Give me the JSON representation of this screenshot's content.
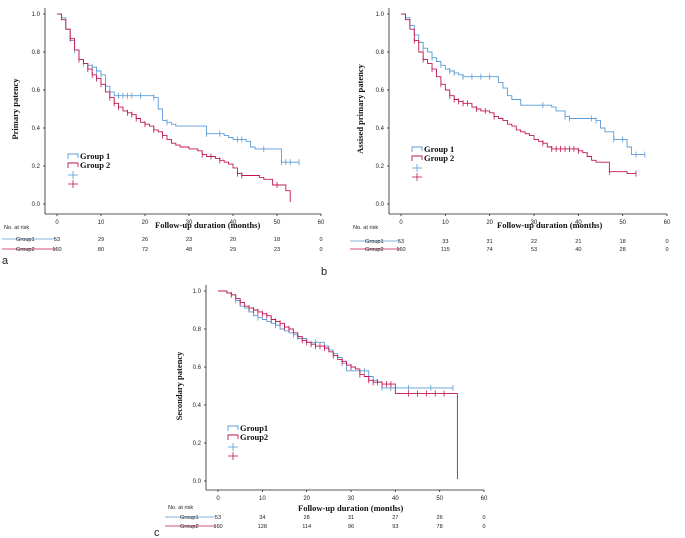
{
  "colors": {
    "group1": "#5b9bd5",
    "group2": "#c0174f",
    "axis": "#222222"
  },
  "risk_header": "No. at risk",
  "chart_data": [
    {
      "panel": "a",
      "type": "line",
      "step": true,
      "ylabel": "Primary patency",
      "xlabel": "Follow-up  duration (months)",
      "xlim": [
        0,
        60
      ],
      "ylim": [
        0,
        1.0
      ],
      "xticks": [
        "0",
        "10",
        "20",
        "30",
        "40",
        "50",
        "60"
      ],
      "yticks": [
        "0.0",
        "0.2",
        "0.4",
        "0.6",
        "0.8",
        "1.0"
      ],
      "legend": [
        "Group 1",
        "Group 2"
      ],
      "legend_position": "lower-left",
      "series": [
        {
          "name": "Group 1",
          "x": [
            0,
            1,
            2,
            3,
            4,
            5,
            6,
            7,
            8,
            9,
            10,
            11,
            12,
            13,
            14,
            15,
            16,
            17,
            18,
            19,
            20,
            21,
            22,
            23,
            24,
            25,
            26,
            27,
            28,
            29,
            30,
            31,
            32,
            33,
            34,
            35,
            36,
            37,
            38,
            39,
            40,
            41,
            42,
            43,
            44,
            45,
            46,
            47,
            48,
            49,
            50,
            51,
            52,
            53,
            54,
            55
          ],
          "y": [
            1.0,
            0.98,
            0.92,
            0.86,
            0.81,
            0.76,
            0.74,
            0.73,
            0.72,
            0.7,
            0.68,
            0.62,
            0.59,
            0.57,
            0.57,
            0.57,
            0.57,
            0.57,
            0.57,
            0.57,
            0.57,
            0.57,
            0.56,
            0.5,
            0.44,
            0.43,
            0.42,
            0.41,
            0.41,
            0.41,
            0.41,
            0.41,
            0.41,
            0.41,
            0.37,
            0.37,
            0.37,
            0.37,
            0.36,
            0.35,
            0.34,
            0.34,
            0.34,
            0.33,
            0.3,
            0.29,
            0.29,
            0.29,
            0.29,
            0.29,
            0.29,
            0.22,
            0.22,
            0.22,
            0.22,
            0.22
          ],
          "censored_x": [
            4,
            6,
            8,
            9,
            10,
            12,
            14,
            15,
            16,
            17,
            19,
            22,
            25,
            34,
            37,
            41,
            42,
            47,
            51,
            52,
            53,
            55
          ]
        },
        {
          "name": "Group 2",
          "x": [
            0,
            1,
            2,
            3,
            4,
            5,
            6,
            7,
            8,
            9,
            10,
            11,
            12,
            13,
            14,
            15,
            16,
            17,
            18,
            19,
            20,
            21,
            22,
            23,
            24,
            25,
            26,
            27,
            28,
            29,
            30,
            31,
            32,
            33,
            34,
            35,
            36,
            37,
            38,
            39,
            40,
            41,
            42,
            43,
            44,
            45,
            46,
            47,
            48,
            49,
            50,
            51,
            52,
            53
          ],
          "y": [
            1.0,
            0.97,
            0.92,
            0.87,
            0.81,
            0.76,
            0.74,
            0.71,
            0.68,
            0.66,
            0.63,
            0.59,
            0.56,
            0.53,
            0.51,
            0.49,
            0.48,
            0.47,
            0.45,
            0.43,
            0.42,
            0.41,
            0.39,
            0.38,
            0.36,
            0.34,
            0.32,
            0.31,
            0.3,
            0.3,
            0.29,
            0.29,
            0.28,
            0.26,
            0.25,
            0.25,
            0.24,
            0.23,
            0.22,
            0.21,
            0.19,
            0.16,
            0.15,
            0.15,
            0.15,
            0.15,
            0.14,
            0.13,
            0.13,
            0.1,
            0.1,
            0.1,
            0.07,
            0.01
          ],
          "censored_x": [
            3,
            5,
            7,
            8,
            9,
            10,
            12,
            13,
            14,
            16,
            17,
            18,
            20,
            22,
            24,
            33,
            35,
            37,
            41,
            42,
            50
          ]
        }
      ],
      "risk_table": {
        "times": [
          "0",
          "10",
          "20",
          "30",
          "40",
          "50",
          "60"
        ],
        "rows": [
          {
            "label": "Group1",
            "values": [
              "53",
              "29",
              "26",
              "23",
              "20",
              "18",
              "0"
            ]
          },
          {
            "label": "Group2",
            "values": [
              "160",
              "80",
              "72",
              "48",
              "29",
              "23",
              "0"
            ]
          }
        ]
      }
    },
    {
      "panel": "b",
      "type": "line",
      "step": true,
      "ylabel": "Assised primary patency",
      "xlabel": "Follow-up  duration (months)",
      "xlim": [
        0,
        60
      ],
      "ylim": [
        0,
        1.0
      ],
      "xticks": [
        "0",
        "10",
        "20",
        "30",
        "40",
        "50",
        "60"
      ],
      "yticks": [
        "0.0",
        "0.2",
        "0.4",
        "0.6",
        "0.8",
        "1.0"
      ],
      "legend": [
        "Group 1",
        "Group 2"
      ],
      "legend_position": "lower-left",
      "series": [
        {
          "name": "Group 1",
          "x": [
            0,
            1,
            2,
            3,
            4,
            5,
            6,
            7,
            8,
            9,
            10,
            11,
            12,
            13,
            14,
            15,
            16,
            17,
            18,
            19,
            20,
            21,
            22,
            23,
            24,
            25,
            26,
            27,
            28,
            29,
            30,
            31,
            32,
            33,
            34,
            35,
            36,
            37,
            38,
            39,
            40,
            41,
            42,
            43,
            44,
            45,
            46,
            47,
            48,
            49,
            50,
            51,
            52,
            53,
            54,
            55
          ],
          "y": [
            1.0,
            0.98,
            0.94,
            0.89,
            0.85,
            0.82,
            0.8,
            0.77,
            0.75,
            0.73,
            0.71,
            0.7,
            0.69,
            0.68,
            0.67,
            0.67,
            0.67,
            0.67,
            0.67,
            0.67,
            0.67,
            0.67,
            0.64,
            0.61,
            0.57,
            0.55,
            0.55,
            0.52,
            0.52,
            0.52,
            0.52,
            0.52,
            0.52,
            0.52,
            0.51,
            0.49,
            0.49,
            0.46,
            0.45,
            0.45,
            0.45,
            0.45,
            0.45,
            0.45,
            0.44,
            0.4,
            0.38,
            0.38,
            0.34,
            0.34,
            0.34,
            0.3,
            0.26,
            0.26,
            0.26,
            0.26
          ],
          "censored_x": [
            5,
            7,
            9,
            11,
            12,
            14,
            16,
            18,
            20,
            32,
            37,
            38,
            43,
            44,
            48,
            50,
            53,
            55
          ]
        },
        {
          "name": "Group 2",
          "x": [
            0,
            1,
            2,
            3,
            4,
            5,
            6,
            7,
            8,
            9,
            10,
            11,
            12,
            13,
            14,
            15,
            16,
            17,
            18,
            19,
            20,
            21,
            22,
            23,
            24,
            25,
            26,
            27,
            28,
            29,
            30,
            31,
            32,
            33,
            34,
            35,
            36,
            37,
            38,
            39,
            40,
            41,
            42,
            43,
            44,
            45,
            46,
            47,
            48,
            49,
            50,
            51,
            52,
            53
          ],
          "y": [
            1.0,
            0.97,
            0.92,
            0.86,
            0.8,
            0.76,
            0.74,
            0.71,
            0.67,
            0.63,
            0.6,
            0.57,
            0.55,
            0.54,
            0.53,
            0.53,
            0.51,
            0.5,
            0.49,
            0.49,
            0.48,
            0.46,
            0.45,
            0.44,
            0.42,
            0.41,
            0.39,
            0.38,
            0.37,
            0.36,
            0.34,
            0.33,
            0.32,
            0.3,
            0.29,
            0.29,
            0.29,
            0.29,
            0.29,
            0.29,
            0.28,
            0.27,
            0.25,
            0.23,
            0.22,
            0.22,
            0.22,
            0.17,
            0.17,
            0.17,
            0.17,
            0.16,
            0.16,
            0.16
          ],
          "censored_x": [
            3,
            5,
            7,
            9,
            11,
            12,
            13,
            14,
            15,
            17,
            19,
            21,
            32,
            34,
            35,
            36,
            37,
            38,
            39,
            40,
            47,
            53
          ]
        }
      ],
      "risk_table": {
        "times": [
          "0",
          "10",
          "20",
          "30",
          "40",
          "50",
          "60"
        ],
        "rows": [
          {
            "label": "Group1",
            "values": [
              "53",
              "33",
              "31",
              "22",
              "21",
              "18",
              "0"
            ]
          },
          {
            "label": "Group2",
            "values": [
              "160",
              "115",
              "74",
              "53",
              "40",
              "28",
              "0"
            ]
          }
        ]
      }
    },
    {
      "panel": "c",
      "type": "line",
      "step": true,
      "ylabel": "Secondary patency",
      "xlabel": "Follow-up  duration (months)",
      "xlim": [
        0,
        60
      ],
      "ylim": [
        0,
        1.0
      ],
      "xticks": [
        "0",
        "10",
        "20",
        "30",
        "40",
        "50",
        "60"
      ],
      "yticks": [
        "0.0",
        "0.2",
        "0.4",
        "0.6",
        "0.8",
        "1.0"
      ],
      "legend": [
        "Group1",
        "Group2"
      ],
      "legend_position": "lower-left",
      "series": [
        {
          "name": "Group1",
          "x": [
            0,
            1,
            2,
            3,
            4,
            5,
            6,
            7,
            8,
            9,
            10,
            11,
            12,
            13,
            14,
            15,
            16,
            17,
            18,
            19,
            20,
            21,
            22,
            23,
            24,
            25,
            26,
            27,
            28,
            29,
            30,
            31,
            32,
            33,
            34,
            35,
            36,
            37,
            38,
            39,
            40,
            41,
            42,
            43,
            44,
            45,
            46,
            47,
            48,
            49,
            50,
            51,
            52,
            53
          ],
          "y": [
            1.0,
            1.0,
            0.99,
            0.98,
            0.95,
            0.92,
            0.91,
            0.89,
            0.87,
            0.86,
            0.85,
            0.84,
            0.83,
            0.82,
            0.8,
            0.79,
            0.78,
            0.77,
            0.75,
            0.75,
            0.73,
            0.73,
            0.73,
            0.73,
            0.71,
            0.69,
            0.67,
            0.65,
            0.62,
            0.58,
            0.58,
            0.58,
            0.58,
            0.58,
            0.55,
            0.53,
            0.52,
            0.49,
            0.49,
            0.49,
            0.49,
            0.49,
            0.49,
            0.49,
            0.49,
            0.49,
            0.49,
            0.49,
            0.49,
            0.49,
            0.49,
            0.49,
            0.49,
            0.49
          ],
          "censored_x": [
            4,
            9,
            13,
            17,
            22,
            28,
            33,
            37,
            39,
            43,
            48,
            53
          ]
        },
        {
          "name": "Group2",
          "x": [
            0,
            1,
            2,
            3,
            4,
            5,
            6,
            7,
            8,
            9,
            10,
            11,
            12,
            13,
            14,
            15,
            16,
            17,
            18,
            19,
            20,
            21,
            22,
            23,
            24,
            25,
            26,
            27,
            28,
            29,
            30,
            31,
            32,
            33,
            34,
            35,
            36,
            37,
            38,
            39,
            40,
            41,
            42,
            43,
            44,
            45,
            46,
            47,
            48,
            49,
            50,
            51,
            52,
            53,
            54
          ],
          "y": [
            1.0,
            1.0,
            0.99,
            0.98,
            0.96,
            0.94,
            0.92,
            0.91,
            0.9,
            0.89,
            0.88,
            0.87,
            0.85,
            0.84,
            0.83,
            0.81,
            0.8,
            0.78,
            0.76,
            0.74,
            0.73,
            0.72,
            0.71,
            0.71,
            0.7,
            0.68,
            0.66,
            0.64,
            0.63,
            0.61,
            0.6,
            0.59,
            0.56,
            0.55,
            0.53,
            0.52,
            0.52,
            0.51,
            0.51,
            0.51,
            0.46,
            0.46,
            0.46,
            0.46,
            0.46,
            0.46,
            0.46,
            0.46,
            0.46,
            0.46,
            0.46,
            0.46,
            0.46,
            0.46,
            0.01
          ],
          "censored_x": [
            3,
            5,
            7,
            8,
            9,
            10,
            11,
            12,
            13,
            14,
            15,
            16,
            18,
            19,
            20,
            21,
            22,
            23,
            24,
            26,
            28,
            30,
            32,
            34,
            35,
            36,
            37,
            38,
            39,
            43,
            45,
            47,
            49,
            51
          ]
        }
      ],
      "risk_table": {
        "times": [
          "0",
          "10",
          "20",
          "30",
          "40",
          "50",
          "60"
        ],
        "rows": [
          {
            "label": "Group1",
            "values": [
              "53",
              "34",
              "28",
              "31",
              "27",
              "26",
              "0"
            ]
          },
          {
            "label": "Group2",
            "values": [
              "160",
              "128",
              "114",
              "96",
              "93",
              "78",
              "0"
            ]
          }
        ]
      }
    }
  ]
}
